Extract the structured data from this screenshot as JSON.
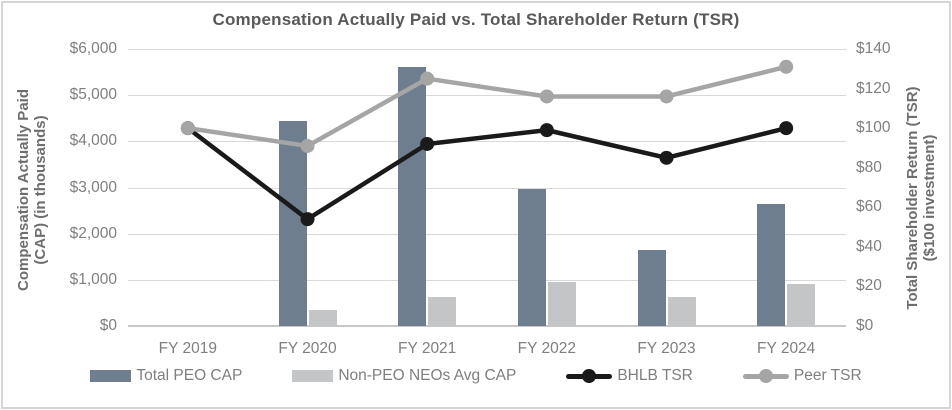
{
  "chart_data": {
    "type": "combo-bar-line",
    "title": "Compensation Actually Paid vs. Total Shareholder Return (TSR)",
    "categories": [
      "FY 2019",
      "FY 2020",
      "FY 2021",
      "FY 2022",
      "FY 2023",
      "FY 2024"
    ],
    "series": [
      {
        "name": "Total PEO CAP",
        "type": "bar",
        "axis": "left",
        "color": "#6e7e8f",
        "values": [
          0,
          4450,
          5600,
          2975,
          1650,
          2650
        ]
      },
      {
        "name": "Non-PEO NEOs Avg CAP",
        "type": "bar",
        "axis": "left",
        "color": "#c4c5c7",
        "values": [
          0,
          350,
          625,
          950,
          625,
          900
        ]
      },
      {
        "name": "BHLB TSR",
        "type": "line",
        "axis": "right",
        "color": "#1a1a1a",
        "values": [
          100,
          54,
          92,
          99,
          85,
          100
        ]
      },
      {
        "name": "Peer TSR",
        "type": "line",
        "axis": "right",
        "color": "#a5a5a5",
        "values": [
          100,
          91,
          125,
          116,
          116,
          131
        ]
      }
    ],
    "left_axis": {
      "title_line1": "Compensation Actually Paid",
      "title_line2": "(CAP) (in thousands)",
      "min": 0,
      "max": 6000,
      "step": 1000,
      "tick_labels": [
        "$6,000",
        "$5,000",
        "$4,000",
        "$3,000",
        "$2,000",
        "$1,000",
        "$0"
      ]
    },
    "right_axis": {
      "title_line1": "Total Shareholder Return (TSR)",
      "title_line2": "($100 investment)",
      "min": 0,
      "max": 140,
      "step": 20,
      "tick_labels": [
        "$140",
        "$120",
        "$100",
        "$80",
        "$60",
        "$40",
        "$20",
        "$0"
      ]
    },
    "legend": [
      "Total PEO CAP",
      "Non-PEO NEOs Avg CAP",
      "BHLB TSR",
      "Peer TSR"
    ],
    "legend_position": "bottom",
    "grid": true,
    "colors": {
      "gridline": "#d9d9d9",
      "baseline": "#c7c7c7",
      "title_text": "#595959",
      "axis_text": "#7f7f7f"
    }
  }
}
